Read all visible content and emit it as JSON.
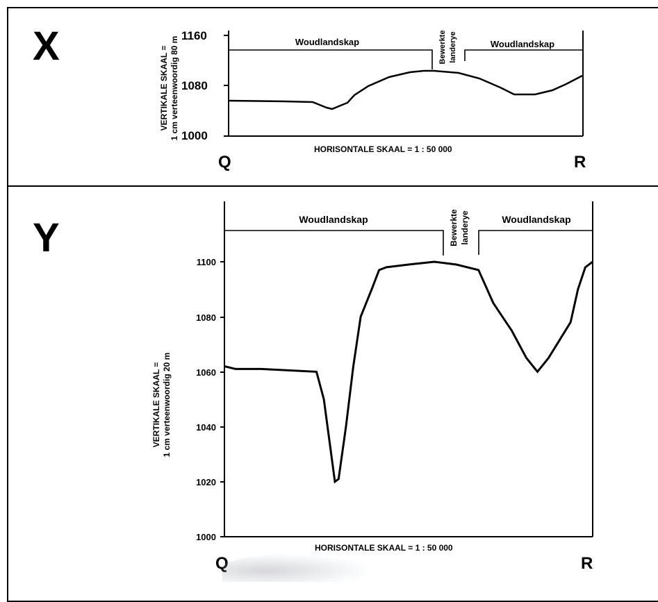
{
  "panels": [
    {
      "letter": "X",
      "start_label": "Q",
      "end_label": "R",
      "vertical_scale": [
        "VERTIKALE SKAAL =",
        "1 cm verteenwoordig 80 m"
      ],
      "horizontal_scale": "HORISONTALE SKAAL = 1 : 50 000",
      "y_ticks": [
        "1000",
        "1080",
        "1160"
      ],
      "land_use": [
        "Woudlandskap",
        "Bewerkte",
        "landerye",
        "Woudlandskap"
      ]
    },
    {
      "letter": "Y",
      "start_label": "Q",
      "end_label": "R",
      "vertical_scale": [
        "VERTIKALE SKAAL =",
        "1 cm verteenwoordig 20 m"
      ],
      "horizontal_scale": "HORISONTALE SKAAL = 1 : 50 000",
      "y_ticks": [
        "1000",
        "1020",
        "1040",
        "1060",
        "1080",
        "1100"
      ],
      "land_use": [
        "Woudlandskap",
        "Bewerkte",
        "landerye",
        "Woudlandskap"
      ]
    }
  ],
  "profile": {
    "x_units": "fraction of Q-R distance",
    "elevation_m": [
      [
        0.0,
        1062
      ],
      [
        0.03,
        1061
      ],
      [
        0.1,
        1061
      ],
      [
        0.25,
        1060
      ],
      [
        0.27,
        1050
      ],
      [
        0.29,
        1030
      ],
      [
        0.3,
        1020
      ],
      [
        0.31,
        1021
      ],
      [
        0.33,
        1040
      ],
      [
        0.35,
        1062
      ],
      [
        0.37,
        1080
      ],
      [
        0.4,
        1090
      ],
      [
        0.42,
        1097
      ],
      [
        0.44,
        1098
      ],
      [
        0.5,
        1099
      ],
      [
        0.57,
        1100
      ],
      [
        0.63,
        1099
      ],
      [
        0.69,
        1097
      ],
      [
        0.73,
        1085
      ],
      [
        0.78,
        1075
      ],
      [
        0.82,
        1065
      ],
      [
        0.85,
        1060
      ],
      [
        0.88,
        1065
      ],
      [
        0.94,
        1078
      ],
      [
        0.96,
        1090
      ],
      [
        0.98,
        1098
      ],
      [
        1.0,
        1100
      ]
    ]
  }
}
